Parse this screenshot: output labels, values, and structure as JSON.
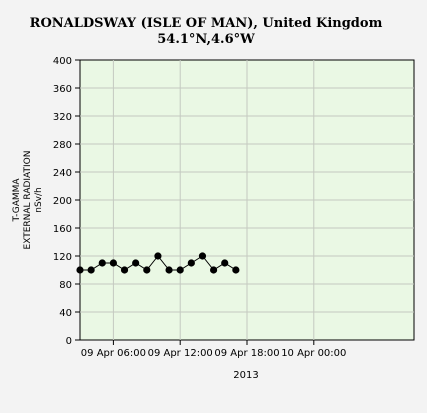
{
  "chart_data": {
    "type": "line",
    "title": "RONALDSWAY (ISLE OF MAN), United Kingdom",
    "subtitle": "54.1°N,4.6°W",
    "ylabel_lines": [
      "T-GAMMA",
      "EXTERNAL RADIATION",
      "nSv/h"
    ],
    "xlabel": "2013",
    "ylim": [
      0,
      400
    ],
    "yticks": [
      0,
      40,
      80,
      120,
      160,
      200,
      240,
      280,
      320,
      360,
      400
    ],
    "xlim_hours": [
      0,
      60
    ],
    "xticks": [
      {
        "hours": 6,
        "label": "09 Apr 06:00"
      },
      {
        "hours": 18,
        "label": "09 Apr 12:00"
      },
      {
        "hours": 30,
        "label": "09 Apr 18:00"
      },
      {
        "hours": 42,
        "label": "10 Apr 00:00"
      }
    ],
    "grid": true,
    "background_color": "#eaf8e4",
    "line_color": "#000000",
    "series": [
      {
        "x_hours": [
          0,
          2,
          4,
          6,
          8,
          10,
          12,
          14,
          16,
          18,
          20,
          22,
          24,
          26,
          28
        ],
        "values": [
          100,
          100,
          110,
          110,
          100,
          110,
          100,
          120,
          100,
          100,
          110,
          120,
          100,
          110,
          100
        ]
      }
    ],
    "extra_point": {
      "x_hours": 28,
      "value": 110
    }
  }
}
